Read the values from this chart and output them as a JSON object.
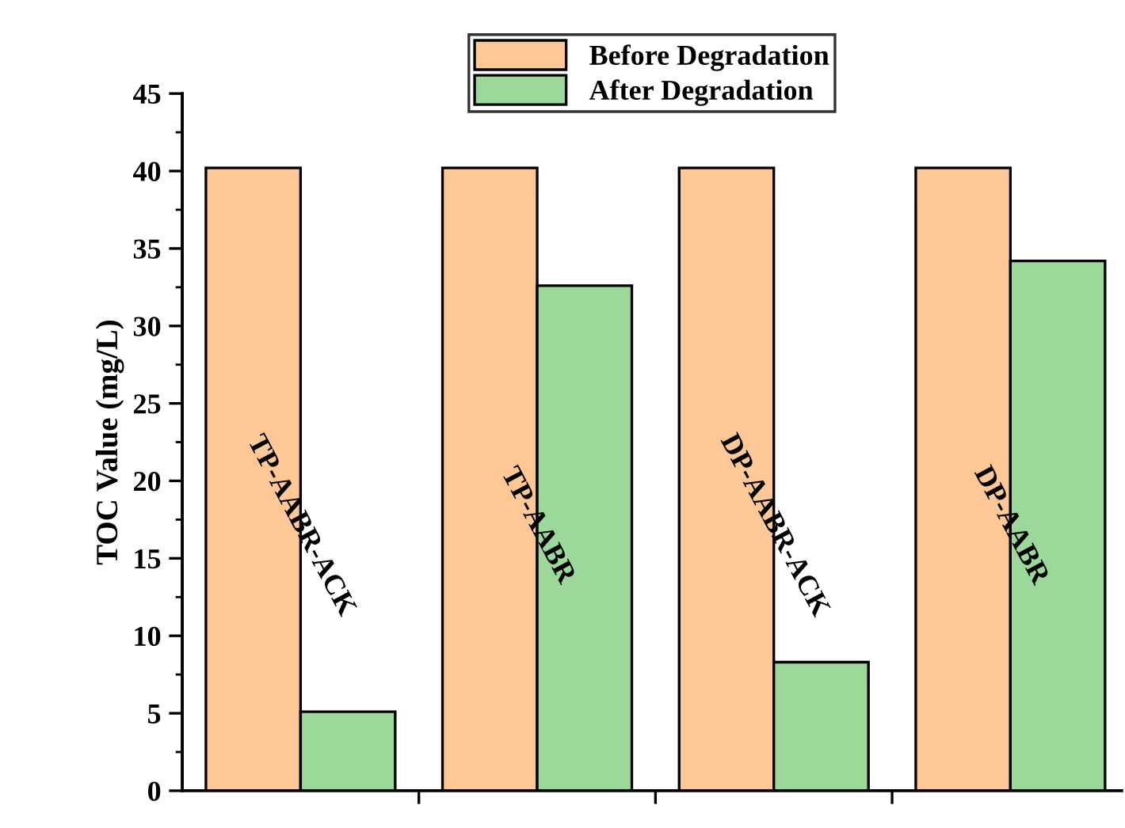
{
  "chart_data": {
    "type": "bar",
    "ylabel": "TOC Value (mg/L)",
    "categories": [
      "TP-AABR-ACK",
      "TP-AABR",
      "DP-AABR-ACK",
      "DP-AABR"
    ],
    "series": [
      {
        "name": "Before Degradation",
        "color": "#fdc896",
        "values": [
          40.2,
          40.2,
          40.2,
          40.2
        ]
      },
      {
        "name": "After Degradation",
        "color": "#9dd89b",
        "values": [
          5.1,
          32.6,
          8.3,
          34.2
        ]
      }
    ],
    "ylim": [
      0,
      45
    ],
    "yticks": [
      0,
      5,
      10,
      15,
      20,
      25,
      30,
      35,
      40,
      45
    ],
    "grid": false,
    "legend": "top"
  }
}
